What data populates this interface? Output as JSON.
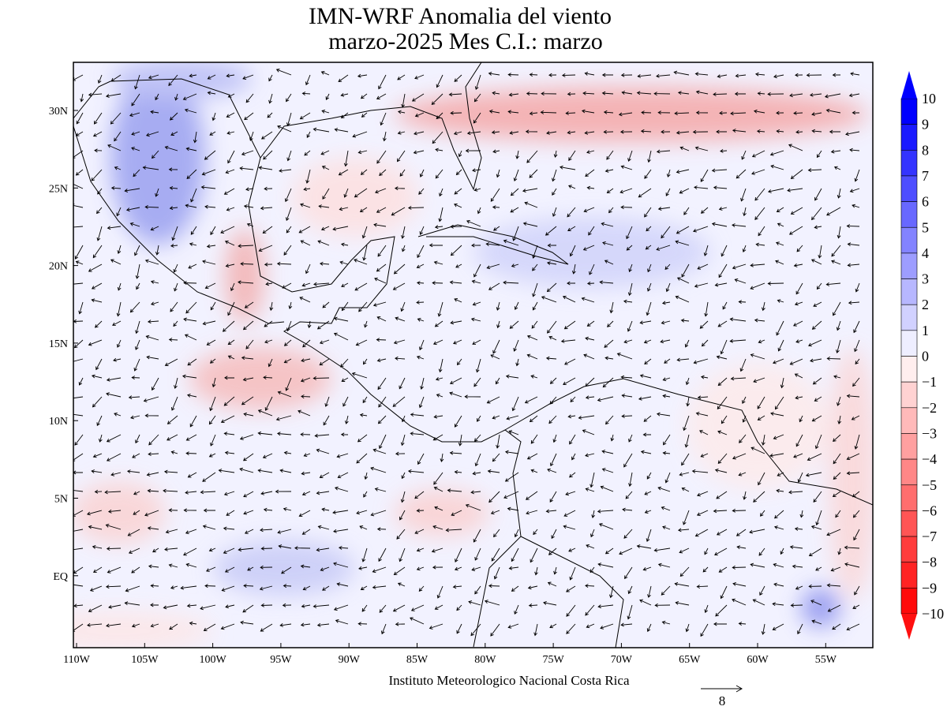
{
  "title": [
    "IMN-WRF Anomalia del viento",
    "marzo-2025 Mes C.I.: marzo"
  ],
  "lat_labels": [
    "30N",
    "25N",
    "20N",
    "15N",
    "10N",
    "5N",
    "EQ"
  ],
  "lon_labels": [
    "110W",
    "105W",
    "100W",
    "95W",
    "90W",
    "85W",
    "80W",
    "75W",
    "70W",
    "65W",
    "60W",
    "55W"
  ],
  "colorbar": [
    "10",
    "9",
    "8",
    "7",
    "6",
    "5",
    "4",
    "3",
    "2",
    "1",
    "0",
    "−1",
    "−2",
    "−3",
    "−4",
    "−5",
    "−6",
    "−7",
    "−8",
    "−9",
    "−10"
  ],
  "footer": "Instituto Meteorologico Nacional Costa Rica",
  "reference_vector": "8"
}
